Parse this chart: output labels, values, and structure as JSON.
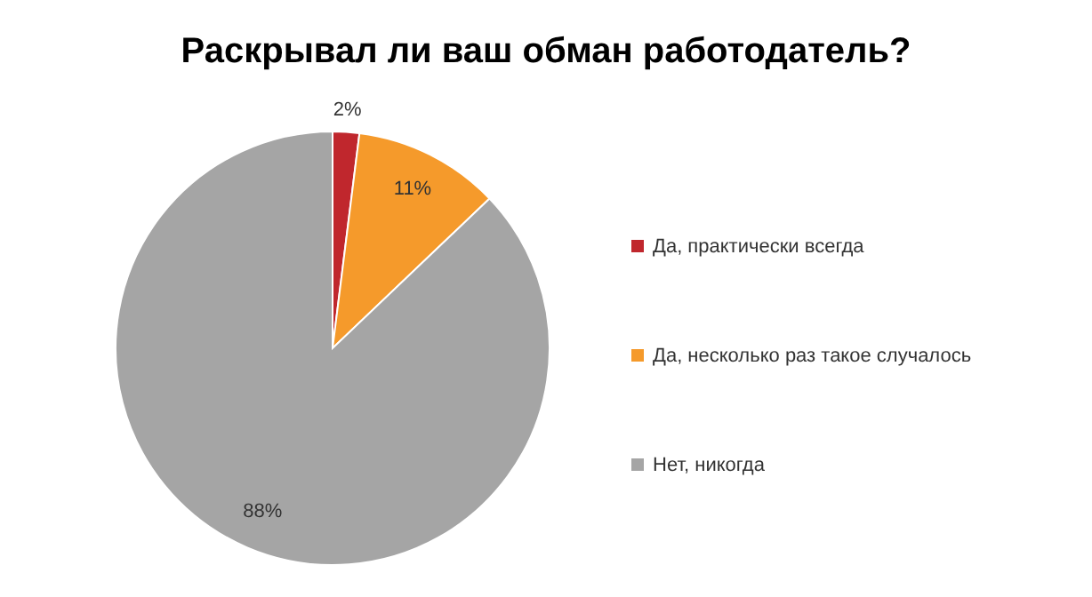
{
  "chart_data": {
    "type": "pie",
    "title": "Раскрывал ли ваш обман работодатель?",
    "categories": [
      "Да, практически всегда",
      "Да, несколько раз такое случалось",
      "Нет, никогда"
    ],
    "values": [
      2,
      11,
      88
    ],
    "colors": [
      "#c0272d",
      "#f59a2b",
      "#a5a5a5"
    ],
    "data_labels": true,
    "value_labels": [
      "2%",
      "11%",
      "88%"
    ],
    "legend": "right"
  }
}
